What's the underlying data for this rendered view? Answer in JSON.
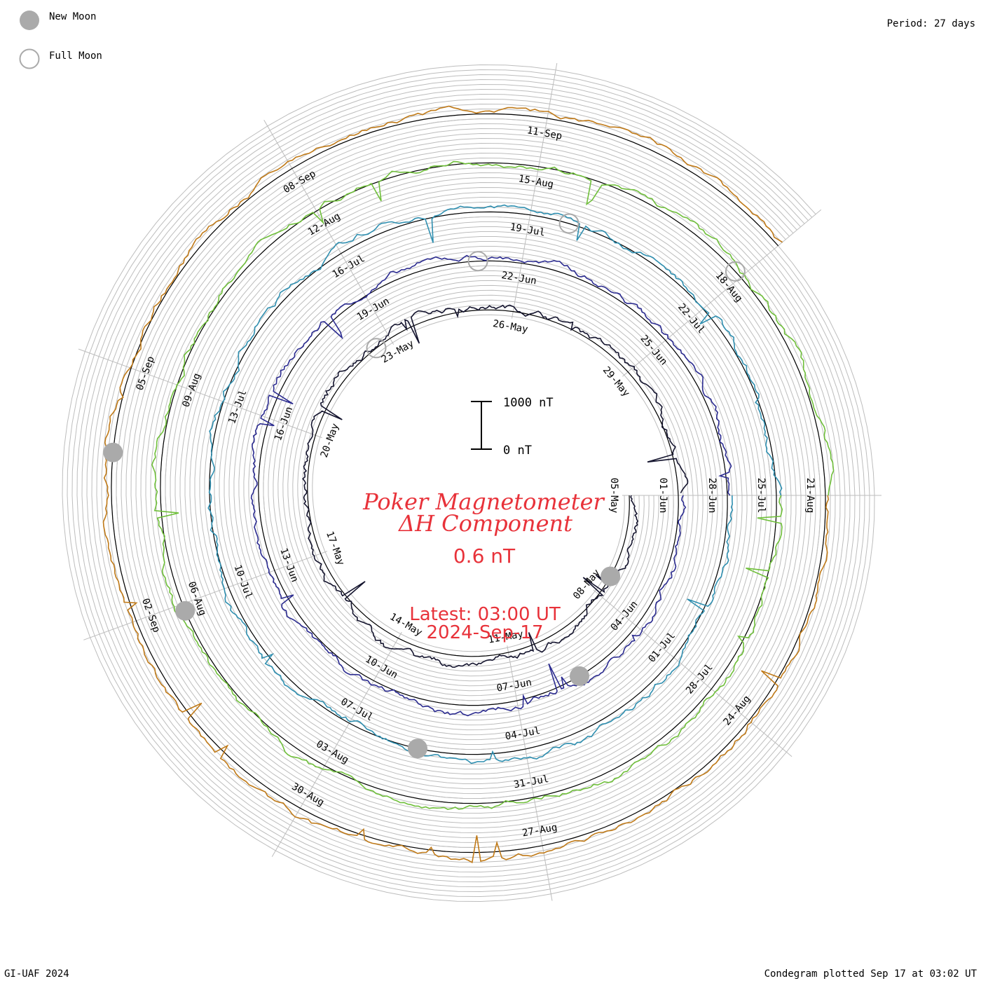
{
  "legend": {
    "new_moon": "New Moon",
    "full_moon": "Full Moon"
  },
  "period": "Period: 27 days",
  "footer_left": "GI-UAF 2024",
  "footer_right": "Condegram plotted Sep 17 at 03:02 UT",
  "scale_bar": {
    "top_label": "1000 nT",
    "bottom_label": "0 nT"
  },
  "center": {
    "title_line1": "Poker Magnetometer",
    "title_line2": "ΔH Component",
    "value": "0.6 nT",
    "latest_line1": "Latest: 03:00 UT",
    "latest_line2": "2024-Sep-17"
  },
  "colors": {
    "text_red": "#e8323a",
    "grid": "#bdbdbd",
    "baseline": "#000000",
    "moon_new": "#aaaaaa"
  },
  "chart_data": {
    "type": "line",
    "chart_style": "condegram spiral",
    "period_days": 27,
    "series": [
      {
        "turn": 1,
        "color": "#14142e",
        "dates": [
          "05-May",
          "08-May",
          "11-May",
          "14-May",
          "17-May",
          "20-May",
          "23-May",
          "26-May",
          "29-May"
        ]
      },
      {
        "turn": 2,
        "color": "#2b2b90",
        "dates": [
          "01-Jun",
          "04-Jun",
          "07-Jun",
          "10-Jun",
          "13-Jun",
          "16-Jun",
          "19-Jun",
          "22-Jun",
          "25-Jun"
        ]
      },
      {
        "turn": 3,
        "color": "#2f8fb0",
        "dates": [
          "28-Jun",
          "01-Jul",
          "04-Jul",
          "07-Jul",
          "10-Jul",
          "13-Jul",
          "16-Jul",
          "19-Jul",
          "22-Jul"
        ]
      },
      {
        "turn": 4,
        "color": "#6fbf3a",
        "dates": [
          "25-Jul",
          "28-Jul",
          "31-Jul",
          "03-Aug",
          "06-Aug",
          "09-Aug",
          "12-Aug",
          "15-Aug",
          "18-Aug"
        ]
      },
      {
        "turn": 5,
        "color": "#c07a18",
        "dates": [
          "21-Aug",
          "24-Aug",
          "27-Aug",
          "30-Aug",
          "02-Sep",
          "05-Sep",
          "08-Sep",
          "11-Sep"
        ]
      }
    ],
    "moon_phases": {
      "new_moon": [
        {
          "turn": 1,
          "day": 2.4
        },
        {
          "turn": 2,
          "day": 4.6
        },
        {
          "turn": 3,
          "day": 7.8
        },
        {
          "turn": 4,
          "day": 11.9
        },
        {
          "turn": 5,
          "day": 14.0
        }
      ],
      "full_moon": [
        {
          "turn": 1,
          "day": 17.6
        },
        {
          "turn": 2,
          "day": 20.2
        },
        {
          "turn": 3,
          "day": 21.6
        },
        {
          "turn": 4,
          "day": 23.9
        }
      ]
    },
    "scale": {
      "bar_nT": 1000
    },
    "latest_value_nT": 0.6
  }
}
